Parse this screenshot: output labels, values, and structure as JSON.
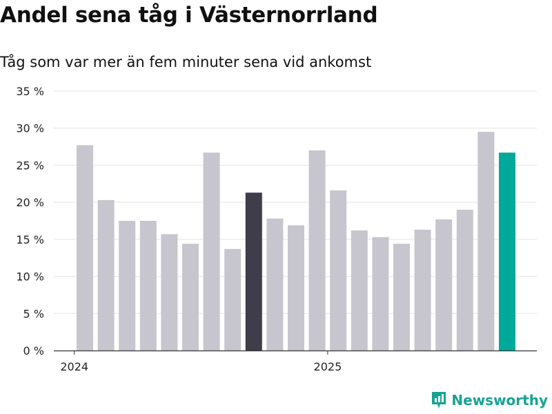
{
  "title": "Andel sena tåg i Västernorrland",
  "subtitle": "Tåg som var mer än fem minuter sena vid ankomst",
  "brand": {
    "name": "Newsworthy",
    "color": "#16a394"
  },
  "colors": {
    "default_bar": "#c7c6ce",
    "highlight_bar": "#3f3d4a",
    "latest_bar": "#00a99a",
    "grid": "#e3e3e3",
    "axis": "#333333"
  },
  "chart_data": {
    "type": "bar",
    "title": "Andel sena tåg i Västernorrland",
    "subtitle": "Tåg som var mer än fem minuter sena vid ankomst",
    "xlabel": "",
    "ylabel": "",
    "ylim": [
      0,
      35
    ],
    "y_ticks": [
      0,
      5,
      10,
      15,
      20,
      25,
      30,
      35
    ],
    "y_tick_labels": [
      "0 %",
      "5 %",
      "10 %",
      "15 %",
      "20 %",
      "25 %",
      "30 %",
      "35 %"
    ],
    "x_tick_labels": [
      {
        "label": "2024",
        "index": -0.5
      },
      {
        "label": "2025",
        "index": 11.5
      }
    ],
    "values": [
      27.7,
      20.3,
      17.5,
      17.5,
      15.7,
      14.4,
      26.7,
      13.7,
      21.3,
      17.8,
      16.9,
      27.0,
      21.6,
      16.2,
      15.3,
      14.4,
      16.3,
      17.7,
      19.0,
      29.5,
      26.7
    ],
    "highlight": {
      "8": "dark",
      "20": "latest"
    },
    "grid": true
  }
}
